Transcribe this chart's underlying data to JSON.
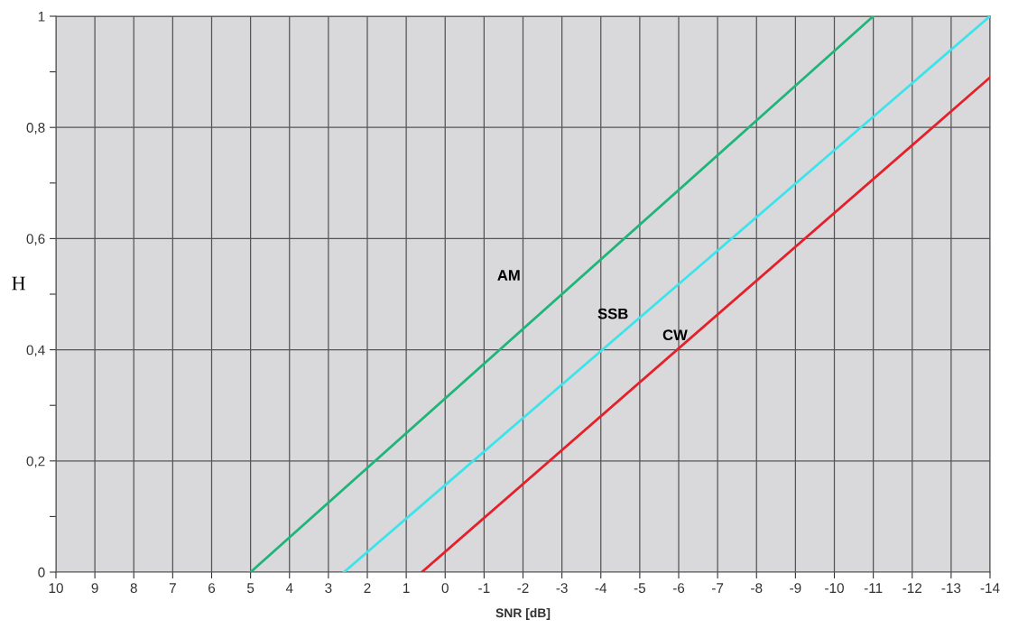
{
  "chart_data": {
    "type": "line",
    "xlabel": "SNR [dB]",
    "ylabel": "H",
    "series": [
      {
        "name": "AM",
        "x": [
          5,
          -11
        ],
        "values": [
          0,
          1
        ],
        "color": "#1fb57a"
      },
      {
        "name": "SSB",
        "x": [
          2.6,
          -14
        ],
        "values": [
          0,
          1
        ],
        "color": "#3ce3ea"
      },
      {
        "name": "CW",
        "x": [
          0.6,
          -14
        ],
        "values": [
          0,
          0.89
        ],
        "color": "#e5202a"
      }
    ],
    "xlim": [
      10,
      -14
    ],
    "xticks": [
      10,
      9,
      8,
      7,
      6,
      5,
      4,
      3,
      2,
      1,
      0,
      -1,
      -2,
      -3,
      -4,
      -5,
      -6,
      -7,
      -8,
      -9,
      -10,
      -11,
      -12,
      -13,
      -14
    ],
    "ylim": [
      0,
      1
    ],
    "yticks": [
      0,
      {
        "value": 0.1,
        "label": null
      },
      {
        "value": 0.2,
        "label": "0,2"
      },
      {
        "value": 0.3,
        "label": null
      },
      {
        "value": 0.4,
        "label": "0,4"
      },
      {
        "value": 0.5,
        "label": null
      },
      {
        "value": 0.6,
        "label": "0,6"
      },
      {
        "value": 0.7,
        "label": null
      },
      {
        "value": 0.8,
        "label": "0,8"
      },
      {
        "value": 0.9,
        "label": null
      },
      1
    ],
    "grid": true,
    "line_style": "solid",
    "marker": "none"
  }
}
